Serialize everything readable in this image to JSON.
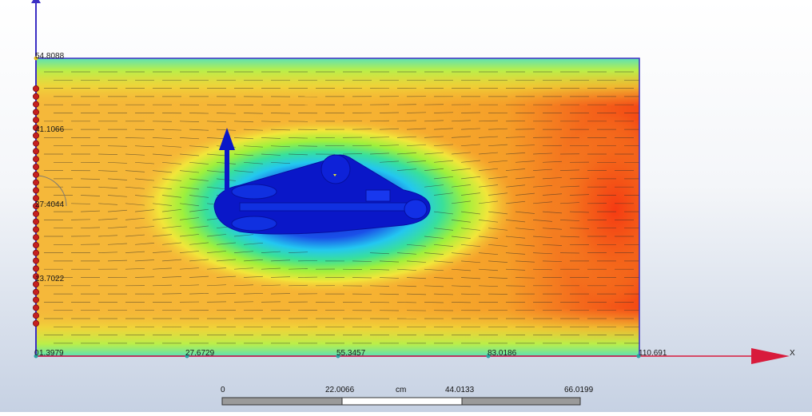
{
  "viewport": {
    "y_axis_labels": [
      "54.8088",
      "41.1066",
      "27.4044",
      "13.7022"
    ],
    "x_axis_labels": [
      "0",
      "27.6729",
      "55.3457",
      "83.0186",
      "110.691"
    ],
    "origin_y_label": "1.3979",
    "x_axis_name": "X"
  },
  "scale_bar": {
    "labels": [
      "0",
      "22.0066",
      "44.0133",
      "66.0199"
    ],
    "unit": "cm"
  },
  "colors": {
    "axis": "#4b3fb0",
    "x_arrow": "#d81b3c",
    "y_arrow": "#3b2fc4",
    "nodes": "#c62020",
    "model": "#0a17c8"
  }
}
